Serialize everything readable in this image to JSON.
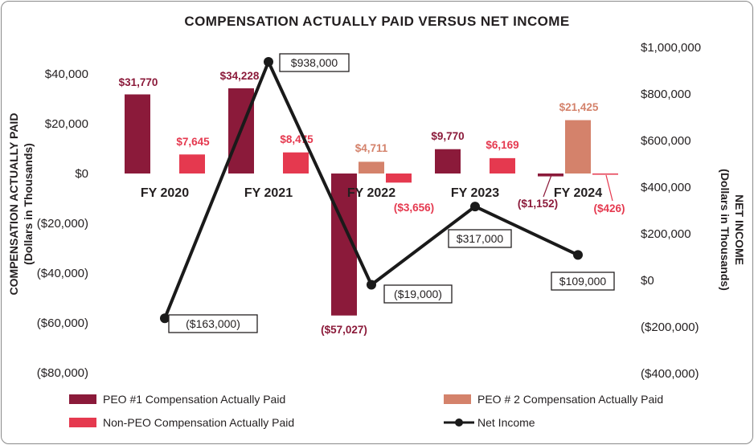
{
  "chart_data": {
    "type": "bar+line",
    "title": "COMPENSATION ACTUALLY PAID VERSUS NET INCOME",
    "categories": [
      "FY 2020",
      "FY 2021",
      "FY 2022",
      "FY 2023",
      "FY 2024"
    ],
    "y_left": {
      "label_line1": "COMPENSATION ACTUALLY PAID",
      "label_line2": "(Dollars in Thousands)",
      "range": [
        -80000,
        40000
      ],
      "ticks": [
        {
          "value": 40000,
          "label": "$40,000"
        },
        {
          "value": 20000,
          "label": "$20,000"
        },
        {
          "value": 0,
          "label": "$0"
        },
        {
          "value": -20000,
          "label": "($20,000)"
        },
        {
          "value": -40000,
          "label": "($40,000)"
        },
        {
          "value": -60000,
          "label": "($60,000)"
        },
        {
          "value": -80000,
          "label": "($80,000)"
        }
      ]
    },
    "y_right": {
      "label_line1": "NET INCOME",
      "label_line2": "(Dollars in Thousands)",
      "range": [
        -400000,
        1000000
      ],
      "ticks": [
        {
          "value": 1000000,
          "label": "$1,000,000"
        },
        {
          "value": 800000,
          "label": "$800,000"
        },
        {
          "value": 600000,
          "label": "$600,000"
        },
        {
          "value": 400000,
          "label": "$400,000"
        },
        {
          "value": 200000,
          "label": "$200,000"
        },
        {
          "value": 0,
          "label": "$0"
        },
        {
          "value": -200000,
          "label": "($200,000)"
        },
        {
          "value": -400000,
          "label": "($400,000)"
        }
      ]
    },
    "series": [
      {
        "name": "PEO #1 Compensation Actually Paid",
        "color": "#8b1a3a",
        "label_color": "#8b1a3a",
        "values": [
          31770,
          34228,
          -57027,
          9770,
          -1152
        ],
        "labels": [
          "$31,770",
          "$34,228",
          "($57,027)",
          "$9,770",
          "($1,152)"
        ]
      },
      {
        "name": "PEO # 2 Compensation Actually Paid",
        "color": "#d4826b",
        "label_color": "#d4826b",
        "values": [
          null,
          null,
          4711,
          null,
          21425
        ],
        "labels": [
          null,
          null,
          "$4,711",
          null,
          "$21,425"
        ]
      },
      {
        "name": "Non-PEO Compensation Actually Paid",
        "color": "#e5394f",
        "label_color": "#e5394f",
        "values": [
          7645,
          8475,
          -3656,
          6169,
          -426
        ],
        "labels": [
          "$7,645",
          "$8,475",
          "($3,656)",
          "$6,169",
          "($426)"
        ]
      }
    ],
    "line": {
      "name": "Net Income",
      "color": "#1a1a1a",
      "values": [
        -163000,
        938000,
        -19000,
        317000,
        109000
      ],
      "labels": [
        "($163,000)",
        "$938,000",
        "($19,000)",
        "$317,000",
        "$109,000"
      ]
    },
    "legend": [
      {
        "label": "PEO #1 Compensation Actually Paid",
        "color": "#8b1a3a",
        "kind": "box"
      },
      {
        "label": "PEO # 2 Compensation Actually Paid",
        "color": "#d4826b",
        "kind": "box"
      },
      {
        "label": "Non-PEO Compensation Actually Paid",
        "color": "#e5394f",
        "kind": "box"
      },
      {
        "label": "Net Income",
        "color": "#1a1a1a",
        "kind": "line"
      }
    ]
  }
}
